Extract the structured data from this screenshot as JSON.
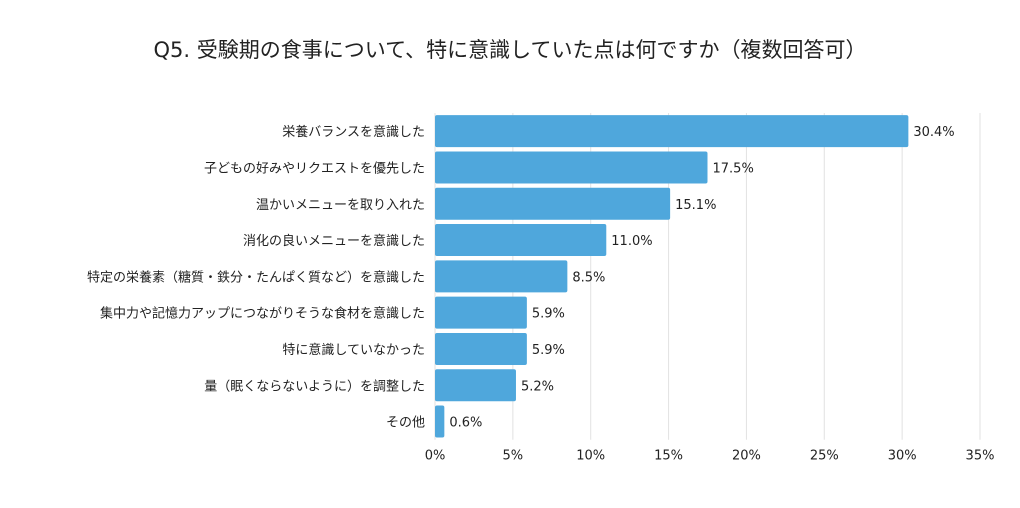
{
  "chart_data": {
    "type": "bar",
    "orientation": "horizontal",
    "title": "Q5. 受験期の食事について、特に意識していた点は何ですか（複数回答可）",
    "categories": [
      "栄養バランスを意識した",
      "子どもの好みやリクエストを優先した",
      "温かいメニューを取り入れた",
      "消化の良いメニューを意識した",
      "特定の栄養素（糖質・鉄分・たんぱく質など）を意識した",
      "集中力や記憶力アップにつながりそうな食材を意識した",
      "特に意識していなかった",
      "量（眠くならないように）を調整した",
      "その他"
    ],
    "values": [
      30.4,
      17.5,
      15.1,
      11.0,
      8.5,
      5.9,
      5.9,
      5.2,
      0.6
    ],
    "data_labels": [
      "30.4%",
      "17.5%",
      "15.1%",
      "11.0%",
      "8.5%",
      "5.9%",
      "5.9%",
      "5.2%",
      "0.6%"
    ],
    "xlim": [
      0,
      35
    ],
    "x_ticks": [
      "0%",
      "5%",
      "10%",
      "15%",
      "20%",
      "25%",
      "30%",
      "35%"
    ],
    "grid": true,
    "bar_color": "#4fa7dc",
    "grid_color": "#e2e2e2"
  }
}
